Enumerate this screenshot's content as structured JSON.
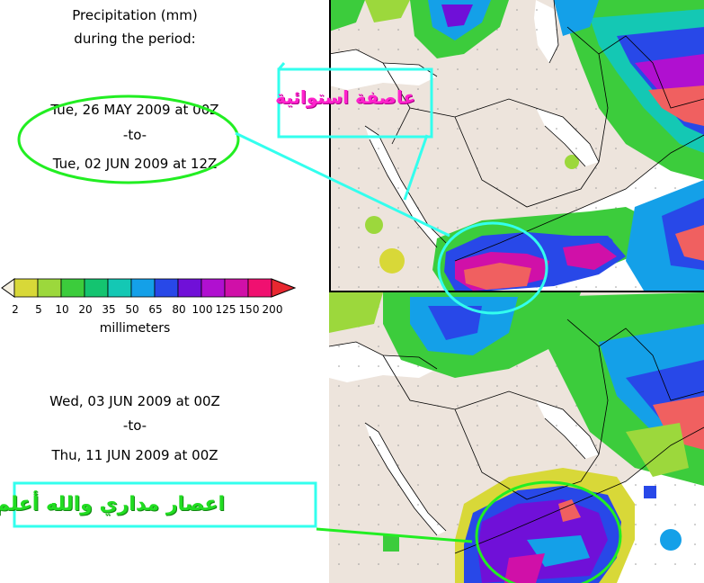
{
  "header": {
    "title_line1": "Precipitation (mm)",
    "title_line2": "during the period:"
  },
  "period1": {
    "from": "Tue, 26 MAY 2009 at 00Z",
    "to": "-to-",
    "till": "Tue, 02 JUN 2009 at 12Z"
  },
  "period2": {
    "from": "Wed, 03 JUN 2009 at 00Z",
    "to": "-to-",
    "till": "Thu, 11 JUN 2009 at 00Z"
  },
  "colorbar": {
    "unit": "millimeters",
    "ticks": [
      "2",
      "5",
      "10",
      "20",
      "35",
      "50",
      "65",
      "80",
      "100",
      "125",
      "150",
      "200"
    ],
    "colors": [
      "#d8d838",
      "#9cd83c",
      "#3ccc3c",
      "#14c470",
      "#14c8b4",
      "#14a0e8",
      "#2848e8",
      "#7010d8",
      "#b010d0",
      "#d010a8",
      "#f01070",
      "#f06060"
    ],
    "under_color": "#f5f0e0",
    "over_color": "#e82830"
  },
  "map": {
    "land_color": "#ede4dc",
    "sea_color": "#ffffff",
    "border_color": "#000000"
  },
  "annotations": {
    "stamp_top": "عاصفة استوائية",
    "stamp_bottom": "اعصار مداري والله أعلم",
    "frame_color": "#33ffee",
    "ellipse_color": "#22ee22"
  }
}
